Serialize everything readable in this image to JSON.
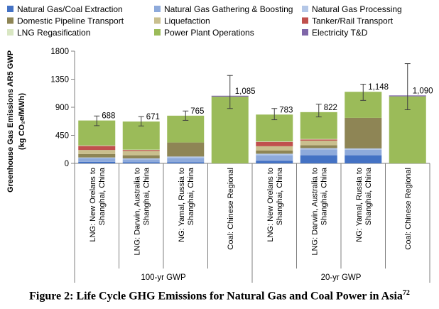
{
  "caption": {
    "text": "Figure 2:  Life Cycle GHG Emissions for Natural Gas and Coal Power in Asia",
    "superscript": "72"
  },
  "chart_data": {
    "type": "bar",
    "stacked": true,
    "ylabel_lines": [
      "Greenhouse Gas Emissions AR5 GWP",
      "(kg CO₂e/MWh)"
    ],
    "ylim": [
      0,
      1800
    ],
    "yticks": [
      0,
      450,
      900,
      1350,
      1800
    ],
    "yticklabels": [
      "0",
      "450",
      "900",
      "1350",
      "1800"
    ],
    "grid": false,
    "legend_position": "top",
    "categories": [
      {
        "lines": [
          "LNG: New Orelans to",
          "Shanghai, China"
        ]
      },
      {
        "lines": [
          "LNG: Darwin, Australia to",
          "Shanghai, China"
        ]
      },
      {
        "lines": [
          "NG: Yamal, Russia to",
          "Shanghai, China"
        ]
      },
      {
        "lines": [
          "Coal: Chinese Regional"
        ]
      },
      {
        "lines": [
          "LNG: New Orelans to",
          "Shanghai, China"
        ]
      },
      {
        "lines": [
          "LNG: Darwin, Australia to",
          "Shanghai, China"
        ]
      },
      {
        "lines": [
          "NG: Yamal, Russia to",
          "Shanghai, China"
        ]
      },
      {
        "lines": [
          "Coal: Chinese Regional"
        ]
      }
    ],
    "groups": [
      {
        "label": "100-yr GWP",
        "categories": [
          0,
          1,
          2,
          3
        ]
      },
      {
        "label": "20-yr GWP",
        "categories": [
          4,
          5,
          6,
          7
        ]
      }
    ],
    "totals": [
      688,
      671,
      765,
      1085,
      783,
      822,
      1148,
      1090
    ],
    "total_labels": [
      "688",
      "671",
      "765",
      "1,085",
      "783",
      "822",
      "1,148",
      "1,090"
    ],
    "error_bars": [
      {
        "low": 605,
        "high": 760
      },
      {
        "low": 600,
        "high": 750
      },
      {
        "low": 690,
        "high": 840
      },
      {
        "low": 880,
        "high": 1410
      },
      {
        "low": 700,
        "high": 880
      },
      {
        "low": 745,
        "high": 950
      },
      {
        "low": 1010,
        "high": 1270
      },
      {
        "low": 860,
        "high": 1600
      }
    ],
    "series": [
      {
        "name": "Natural Gas/Coal Extraction",
        "color": "#4472c4",
        "values": [
          25,
          20,
          20,
          0,
          40,
          130,
          130,
          0
        ]
      },
      {
        "name": "Natural Gas Gathering & Boosting",
        "color": "#8eaadb",
        "values": [
          55,
          45,
          65,
          0,
          90,
          95,
          90,
          0
        ]
      },
      {
        "name": "Natural Gas Processing",
        "color": "#b4c7e7",
        "values": [
          15,
          15,
          25,
          0,
          25,
          20,
          20,
          0
        ]
      },
      {
        "name": "Domestic Pipeline Transport",
        "color": "#8e8555",
        "values": [
          55,
          50,
          225,
          0,
          50,
          45,
          490,
          0
        ]
      },
      {
        "name": "Liquefaction",
        "color": "#c9bf8e",
        "values": [
          65,
          70,
          0,
          0,
          70,
          75,
          0,
          0
        ]
      },
      {
        "name": "Tanker/Rail Transport",
        "color": "#c0504d",
        "values": [
          65,
          15,
          0,
          0,
          70,
          18,
          0,
          0
        ]
      },
      {
        "name": "LNG Regasification",
        "color": "#d9e7c3",
        "values": [
          8,
          6,
          0,
          0,
          8,
          8,
          0,
          0
        ]
      },
      {
        "name": "Power Plant Operations",
        "color": "#9bbb59",
        "values": [
          400,
          450,
          430,
          1070,
          430,
          431,
          418,
          1075
        ]
      },
      {
        "name": "Electricity T&D",
        "color": "#7f66a8",
        "values": [
          0,
          0,
          0,
          15,
          0,
          0,
          0,
          15
        ]
      }
    ]
  }
}
